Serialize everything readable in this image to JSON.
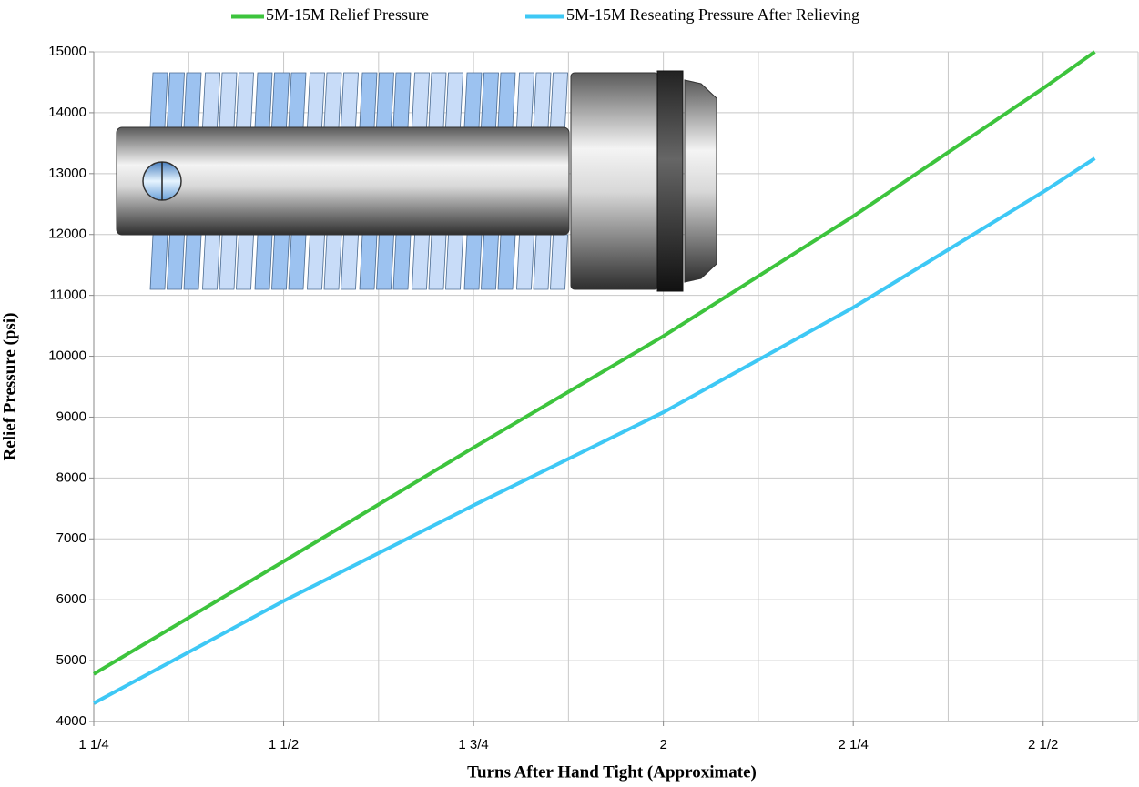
{
  "chart_data": {
    "type": "line",
    "x_label": "Turns After Hand Tight (Approximate)",
    "y_label": "Relief Pressure (psi)",
    "x": [
      1.25,
      1.5,
      1.75,
      2,
      2.25,
      2.5,
      2.568
    ],
    "series": [
      {
        "name": "5M-15M Relief Pressure",
        "color": "#3dc43d",
        "values": [
          4780,
          6630,
          8500,
          10330,
          12300,
          14400,
          15000
        ]
      },
      {
        "name": "5M-15M Reseating Pressure After Relieving",
        "color": "#3ec8f5",
        "values": [
          4300,
          5980,
          7550,
          9080,
          10800,
          12700,
          13250
        ]
      }
    ],
    "xlim": [
      1.25,
      2.625
    ],
    "xticks": [
      {
        "value": 1.25,
        "label": "1 1/4"
      },
      {
        "value": 1.5,
        "label": "1 1/2"
      },
      {
        "value": 1.75,
        "label": "1 3/4"
      },
      2,
      {
        "value": 2.25,
        "label": "2 1/4"
      },
      {
        "value": 2.5,
        "label": "2 1/2"
      }
    ],
    "x_minor_grid": [
      1.375,
      1.625,
      1.875,
      2.125,
      2.375,
      2.625
    ],
    "ylim": [
      4000,
      15000
    ],
    "yticks": [
      4000,
      5000,
      6000,
      7000,
      8000,
      9000,
      10000,
      11000,
      12000,
      13000,
      14000,
      15000
    ],
    "grid": true
  }
}
